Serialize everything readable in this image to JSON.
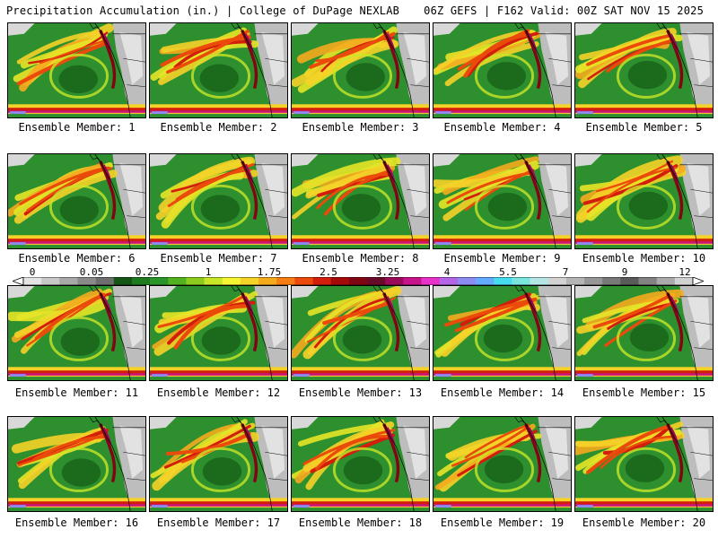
{
  "header": {
    "title_left": "Precipitation Accumulation (in.) | College of DuPage NEXLAB",
    "title_right": "06Z GEFS | F162 Valid: 00Z SAT NOV 15 2025"
  },
  "colorbar": {
    "labels": [
      "0",
      "0.05",
      "0.25",
      "1",
      "1.75",
      "2.5",
      "3.25",
      "4",
      "5.5",
      "7",
      "9",
      "12"
    ],
    "colors": [
      "#e4e4e4",
      "#c8c8c8",
      "#a8a8a8",
      "#8a8a8a",
      "#6e6e6e",
      "#155515",
      "#1e7a1e",
      "#2a962a",
      "#52b11e",
      "#8ccb1e",
      "#c8e628",
      "#f5f532",
      "#f5d228",
      "#f5aa1e",
      "#f57d14",
      "#eb4b0a",
      "#d21e0a",
      "#a50a0a",
      "#820514",
      "#690a28",
      "#9b0a5a",
      "#c8148c",
      "#e632c8",
      "#b464e6",
      "#8c8cf0",
      "#64aaff",
      "#46dcf0",
      "#78e6dc",
      "#b4e6e6",
      "#d2d2d2",
      "#b4b4b4",
      "#969696",
      "#787878",
      "#5a5a5a",
      "#828282",
      "#aaaaaa",
      "#d2d2d2"
    ]
  },
  "members": [
    {
      "label": "Ensemble Member: 1"
    },
    {
      "label": "Ensemble Member: 2"
    },
    {
      "label": "Ensemble Member: 3"
    },
    {
      "label": "Ensemble Member: 4"
    },
    {
      "label": "Ensemble Member: 5"
    },
    {
      "label": "Ensemble Member: 6"
    },
    {
      "label": "Ensemble Member: 7"
    },
    {
      "label": "Ensemble Member: 8"
    },
    {
      "label": "Ensemble Member: 9"
    },
    {
      "label": "Ensemble Member: 10"
    },
    {
      "label": "Ensemble Member: 11"
    },
    {
      "label": "Ensemble Member: 12"
    },
    {
      "label": "Ensemble Member: 13"
    },
    {
      "label": "Ensemble Member: 14"
    },
    {
      "label": "Ensemble Member: 15"
    },
    {
      "label": "Ensemble Member: 16"
    },
    {
      "label": "Ensemble Member: 17"
    },
    {
      "label": "Ensemble Member: 18"
    },
    {
      "label": "Ensemble Member: 19"
    },
    {
      "label": "Ensemble Member: 20"
    }
  ]
}
